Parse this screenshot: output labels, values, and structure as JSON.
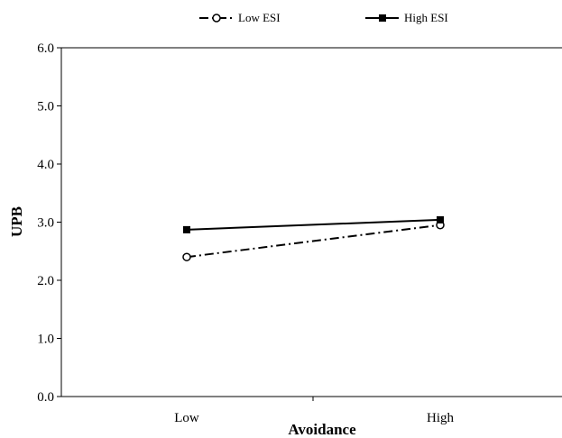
{
  "chart_data": {
    "type": "line",
    "xlabel": "Avoidance",
    "ylabel": "UPB",
    "categories": [
      "Low",
      "High"
    ],
    "ylim": [
      0,
      6
    ],
    "yticks": [
      "0.0",
      "1.0",
      "2.0",
      "3.0",
      "4.0",
      "5.0",
      "6.0"
    ],
    "grid": false,
    "legend_position": "top-center",
    "series": [
      {
        "name": "Low ESI",
        "values": [
          2.4,
          2.95
        ],
        "line_style": "dash-dot",
        "marker": "open-circle",
        "color": "#000000"
      },
      {
        "name": "High ESI",
        "values": [
          2.87,
          3.04
        ],
        "line_style": "solid",
        "marker": "filled-square",
        "color": "#000000"
      }
    ]
  }
}
